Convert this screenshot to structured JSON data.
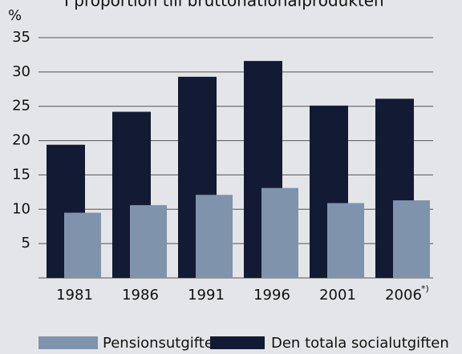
{
  "chart_data": {
    "type": "bar",
    "title": "I proportion till bruttonationalprodukten",
    "y_label": "%",
    "categories": [
      "1981",
      "1986",
      "1991",
      "1996",
      "2001",
      "2006"
    ],
    "category_note": "*)",
    "series": [
      {
        "name": "Den totala socialutgiften",
        "color": "#121b33",
        "values": [
          19.4,
          24.2,
          29.3,
          31.6,
          25.1,
          26.1
        ]
      },
      {
        "name": "Pensionsutgiften",
        "color": "#7f93ad",
        "values": [
          9.5,
          10.6,
          12.1,
          13.1,
          10.9,
          11.3
        ]
      }
    ],
    "ylim": [
      0,
      35
    ],
    "yticks": [
      5,
      10,
      15,
      20,
      25,
      30,
      35
    ],
    "grid": true
  }
}
